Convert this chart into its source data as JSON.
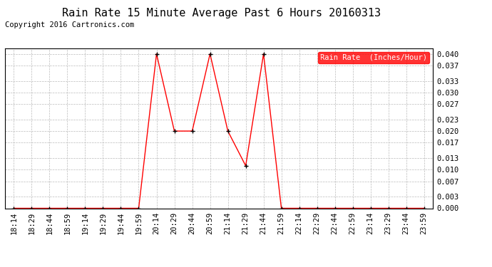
{
  "title": "Rain Rate 15 Minute Average Past 6 Hours 20160313",
  "copyright": "Copyright 2016 Cartronics.com",
  "legend_label": "Rain Rate  (Inches/Hour)",
  "x_labels": [
    "18:14",
    "18:29",
    "18:44",
    "18:59",
    "19:14",
    "19:29",
    "19:44",
    "19:59",
    "20:14",
    "20:29",
    "20:44",
    "20:59",
    "21:14",
    "21:29",
    "21:44",
    "21:59",
    "22:14",
    "22:29",
    "22:44",
    "22:59",
    "23:14",
    "23:29",
    "23:44",
    "23:59"
  ],
  "x_values": [
    0,
    1,
    2,
    3,
    4,
    5,
    6,
    7,
    8,
    9,
    10,
    11,
    12,
    13,
    14,
    15,
    16,
    17,
    18,
    19,
    20,
    21,
    22,
    23
  ],
  "y_values": [
    0.0,
    0.0,
    0.0,
    0.0,
    0.0,
    0.0,
    0.0,
    0.0,
    0.04,
    0.02,
    0.02,
    0.04,
    0.02,
    0.011,
    0.04,
    0.0,
    0.0,
    0.0,
    0.0,
    0.0,
    0.0,
    0.0,
    0.0,
    0.0
  ],
  "y_ticks": [
    0.0,
    0.003,
    0.007,
    0.01,
    0.013,
    0.017,
    0.02,
    0.023,
    0.027,
    0.03,
    0.033,
    0.037,
    0.04
  ],
  "ylim": [
    0.0,
    0.0415
  ],
  "line_color": "red",
  "marker_color": "black",
  "grid_color": "#bbbbbb",
  "background_color": "#ffffff",
  "title_fontsize": 11,
  "copyright_fontsize": 7.5,
  "legend_bg_color": "#ff0000",
  "legend_text_color": "#ffffff",
  "tick_fontsize": 7.5,
  "ytick_fontsize": 7.5
}
